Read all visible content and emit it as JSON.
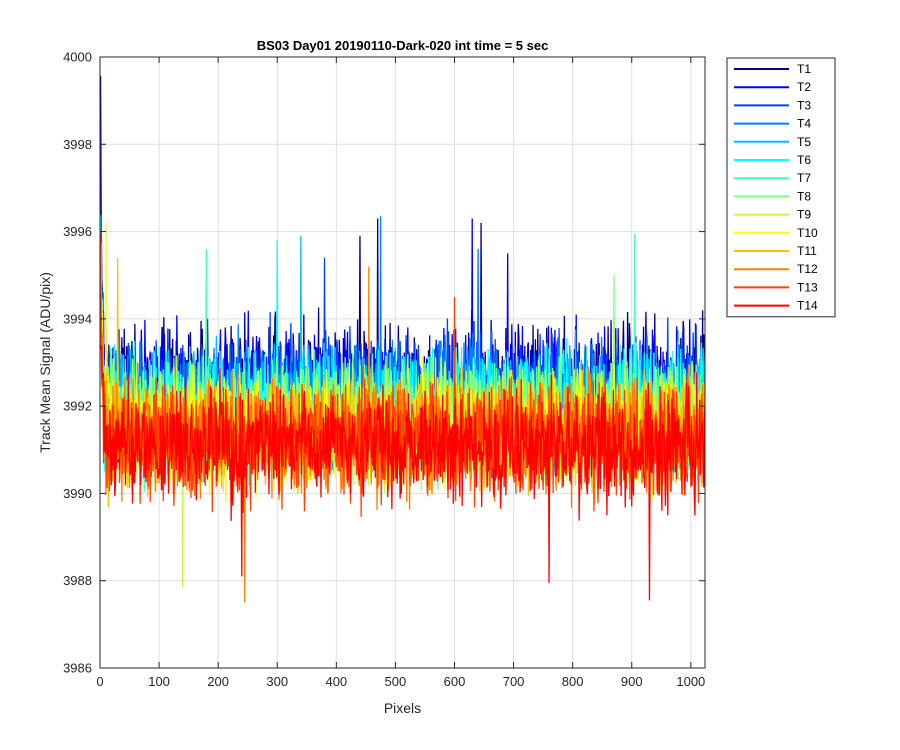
{
  "chart_data": {
    "type": "line",
    "title": "BS03 Day01 20190110-Dark-020 int time = 5 sec",
    "xlabel": "Pixels",
    "ylabel": "Track Mean Signal (ADU/pix)",
    "xlim": [
      0,
      1024
    ],
    "ylim": [
      3986,
      4000
    ],
    "xticks": [
      0,
      100,
      200,
      300,
      400,
      500,
      600,
      700,
      800,
      900,
      1000
    ],
    "yticks": [
      3986,
      3988,
      3990,
      3992,
      3994,
      3996,
      3998,
      4000
    ],
    "grid": true,
    "legend_position": "outside-top-right",
    "series": [
      {
        "name": "T1",
        "color": "#00008f",
        "mean": 3992.4,
        "amplitude": 1.15,
        "start": 3998.4,
        "spikes": [
          [
            470,
            3996.3
          ],
          [
            645,
            3996.2
          ],
          [
            440,
            3995.9
          ],
          [
            1020,
            3994.2
          ]
        ]
      },
      {
        "name": "T2",
        "color": "#0000ff",
        "mean": 3992.3,
        "amplitude": 1.12,
        "start": 3997.0,
        "spikes": [
          [
            630,
            3996.3
          ],
          [
            690,
            3995.5
          ]
        ]
      },
      {
        "name": "T3",
        "color": "#0040ff",
        "mean": 3992.2,
        "amplitude": 1.1,
        "start": 3996.5,
        "spikes": [
          [
            380,
            3995.4
          ]
        ]
      },
      {
        "name": "T4",
        "color": "#0080ff",
        "mean": 3992.1,
        "amplitude": 1.08,
        "start": 3996.0,
        "spikes": [
          [
            475,
            3996.35
          ],
          [
            640,
            3995.6
          ]
        ]
      },
      {
        "name": "T5",
        "color": "#00bfff",
        "mean": 3992.0,
        "amplitude": 1.06,
        "start": 3995.8,
        "spikes": [
          [
            340,
            3995.9
          ]
        ]
      },
      {
        "name": "T6",
        "color": "#00ffff",
        "mean": 3991.9,
        "amplitude": 1.04,
        "start": 3995.6,
        "spikes": [
          [
            300,
            3995.8
          ]
        ]
      },
      {
        "name": "T7",
        "color": "#40ffbf",
        "mean": 3991.8,
        "amplitude": 1.02,
        "start": 3995.4,
        "spikes": [
          [
            180,
            3995.6
          ],
          [
            905,
            3995.95
          ]
        ]
      },
      {
        "name": "T8",
        "color": "#80ff80",
        "mean": 3991.7,
        "amplitude": 1.0,
        "start": 3995.3,
        "spikes": [
          [
            870,
            3995.0
          ]
        ]
      },
      {
        "name": "T9",
        "color": "#bfff40",
        "mean": 3991.6,
        "amplitude": 1.0,
        "start": 3995.5,
        "spikes": [
          [
            140,
            3987.85
          ]
        ]
      },
      {
        "name": "T10",
        "color": "#ffff00",
        "mean": 3991.5,
        "amplitude": 1.0,
        "start": 3996.2,
        "spikes": [
          [
            10,
            3996.2
          ]
        ]
      },
      {
        "name": "T11",
        "color": "#ffbf00",
        "mean": 3991.4,
        "amplitude": 1.0,
        "start": 3995.6,
        "spikes": [
          [
            30,
            3995.4
          ]
        ]
      },
      {
        "name": "T12",
        "color": "#ff8000",
        "mean": 3991.3,
        "amplitude": 1.0,
        "start": 3995.5,
        "spikes": [
          [
            455,
            3995.2
          ],
          [
            245,
            3987.5
          ]
        ]
      },
      {
        "name": "T13",
        "color": "#ff4000",
        "mean": 3991.2,
        "amplitude": 1.0,
        "start": 3995.0,
        "spikes": [
          [
            600,
            3994.5
          ]
        ]
      },
      {
        "name": "T14",
        "color": "#ff0000",
        "mean": 3991.1,
        "amplitude": 1.0,
        "start": 3994.9,
        "spikes": [
          [
            760,
            3987.95
          ],
          [
            930,
            3987.55
          ],
          [
            240,
            3988.1
          ]
        ]
      }
    ]
  }
}
